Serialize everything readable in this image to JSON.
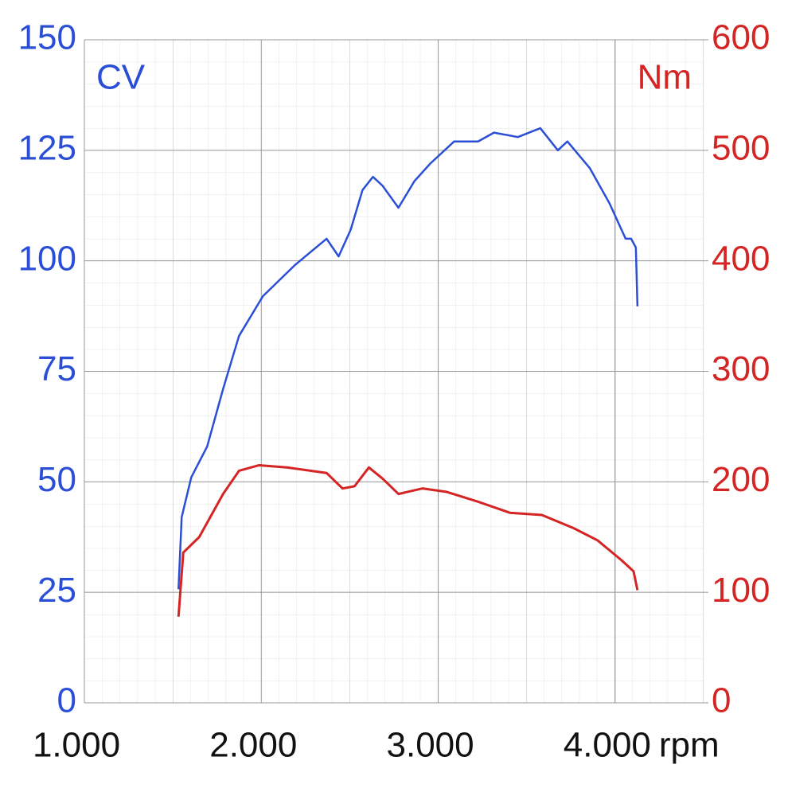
{
  "chart_data": {
    "type": "line",
    "xlim": [
      1000,
      4500
    ],
    "xticks": [
      {
        "value": 1000,
        "label": "1.000"
      },
      {
        "value": 2000,
        "label": "2.000"
      },
      {
        "value": 3000,
        "label": "3.000"
      },
      {
        "value": 4000,
        "label": "4.000"
      }
    ],
    "xlabel": "rpm",
    "ylim": [
      0,
      150
    ],
    "yticks": [
      0,
      25,
      50,
      75,
      100,
      125,
      150
    ],
    "ylabel": "CV",
    "ycolor": "#2a4fd6",
    "y2lim": [
      0,
      600
    ],
    "y2ticks": [
      0,
      100,
      200,
      300,
      400,
      500,
      600
    ],
    "y2label": "Nm",
    "y2color": "#d42424",
    "grid": true,
    "series": [
      {
        "name": "CV",
        "color": "#2a4fd6",
        "axis": "y",
        "x": [
          1532,
          1550,
          1604,
          1694,
          1784,
          1874,
          2009,
          2189,
          2369,
          2437,
          2505,
          2572,
          2631,
          2685,
          2775,
          2865,
          2955,
          3090,
          3225,
          3315,
          3450,
          3577,
          3676,
          3730,
          3856,
          3968,
          4059,
          4090,
          4117,
          4126
        ],
        "values": [
          25.7,
          42,
          51,
          58,
          71,
          83,
          92,
          99,
          105,
          101,
          107,
          116,
          119,
          117,
          112,
          118,
          122,
          127,
          127,
          129,
          128,
          130,
          125,
          127,
          121,
          113,
          105,
          105,
          103,
          89.7
        ]
      },
      {
        "name": "Nm",
        "color": "#d42424",
        "axis": "y2",
        "x": [
          1532,
          1559,
          1649,
          1784,
          1874,
          1986,
          2144,
          2369,
          2459,
          2527,
          2608,
          2685,
          2775,
          2910,
          3045,
          3225,
          3405,
          3586,
          3766,
          3901,
          4036,
          4104,
          4126
        ],
        "values": [
          78,
          136,
          150,
          189,
          210,
          215,
          213,
          208,
          194,
          196,
          213,
          203,
          189,
          194,
          191,
          182,
          172,
          170,
          158,
          147,
          129,
          119,
          102
        ]
      }
    ]
  }
}
